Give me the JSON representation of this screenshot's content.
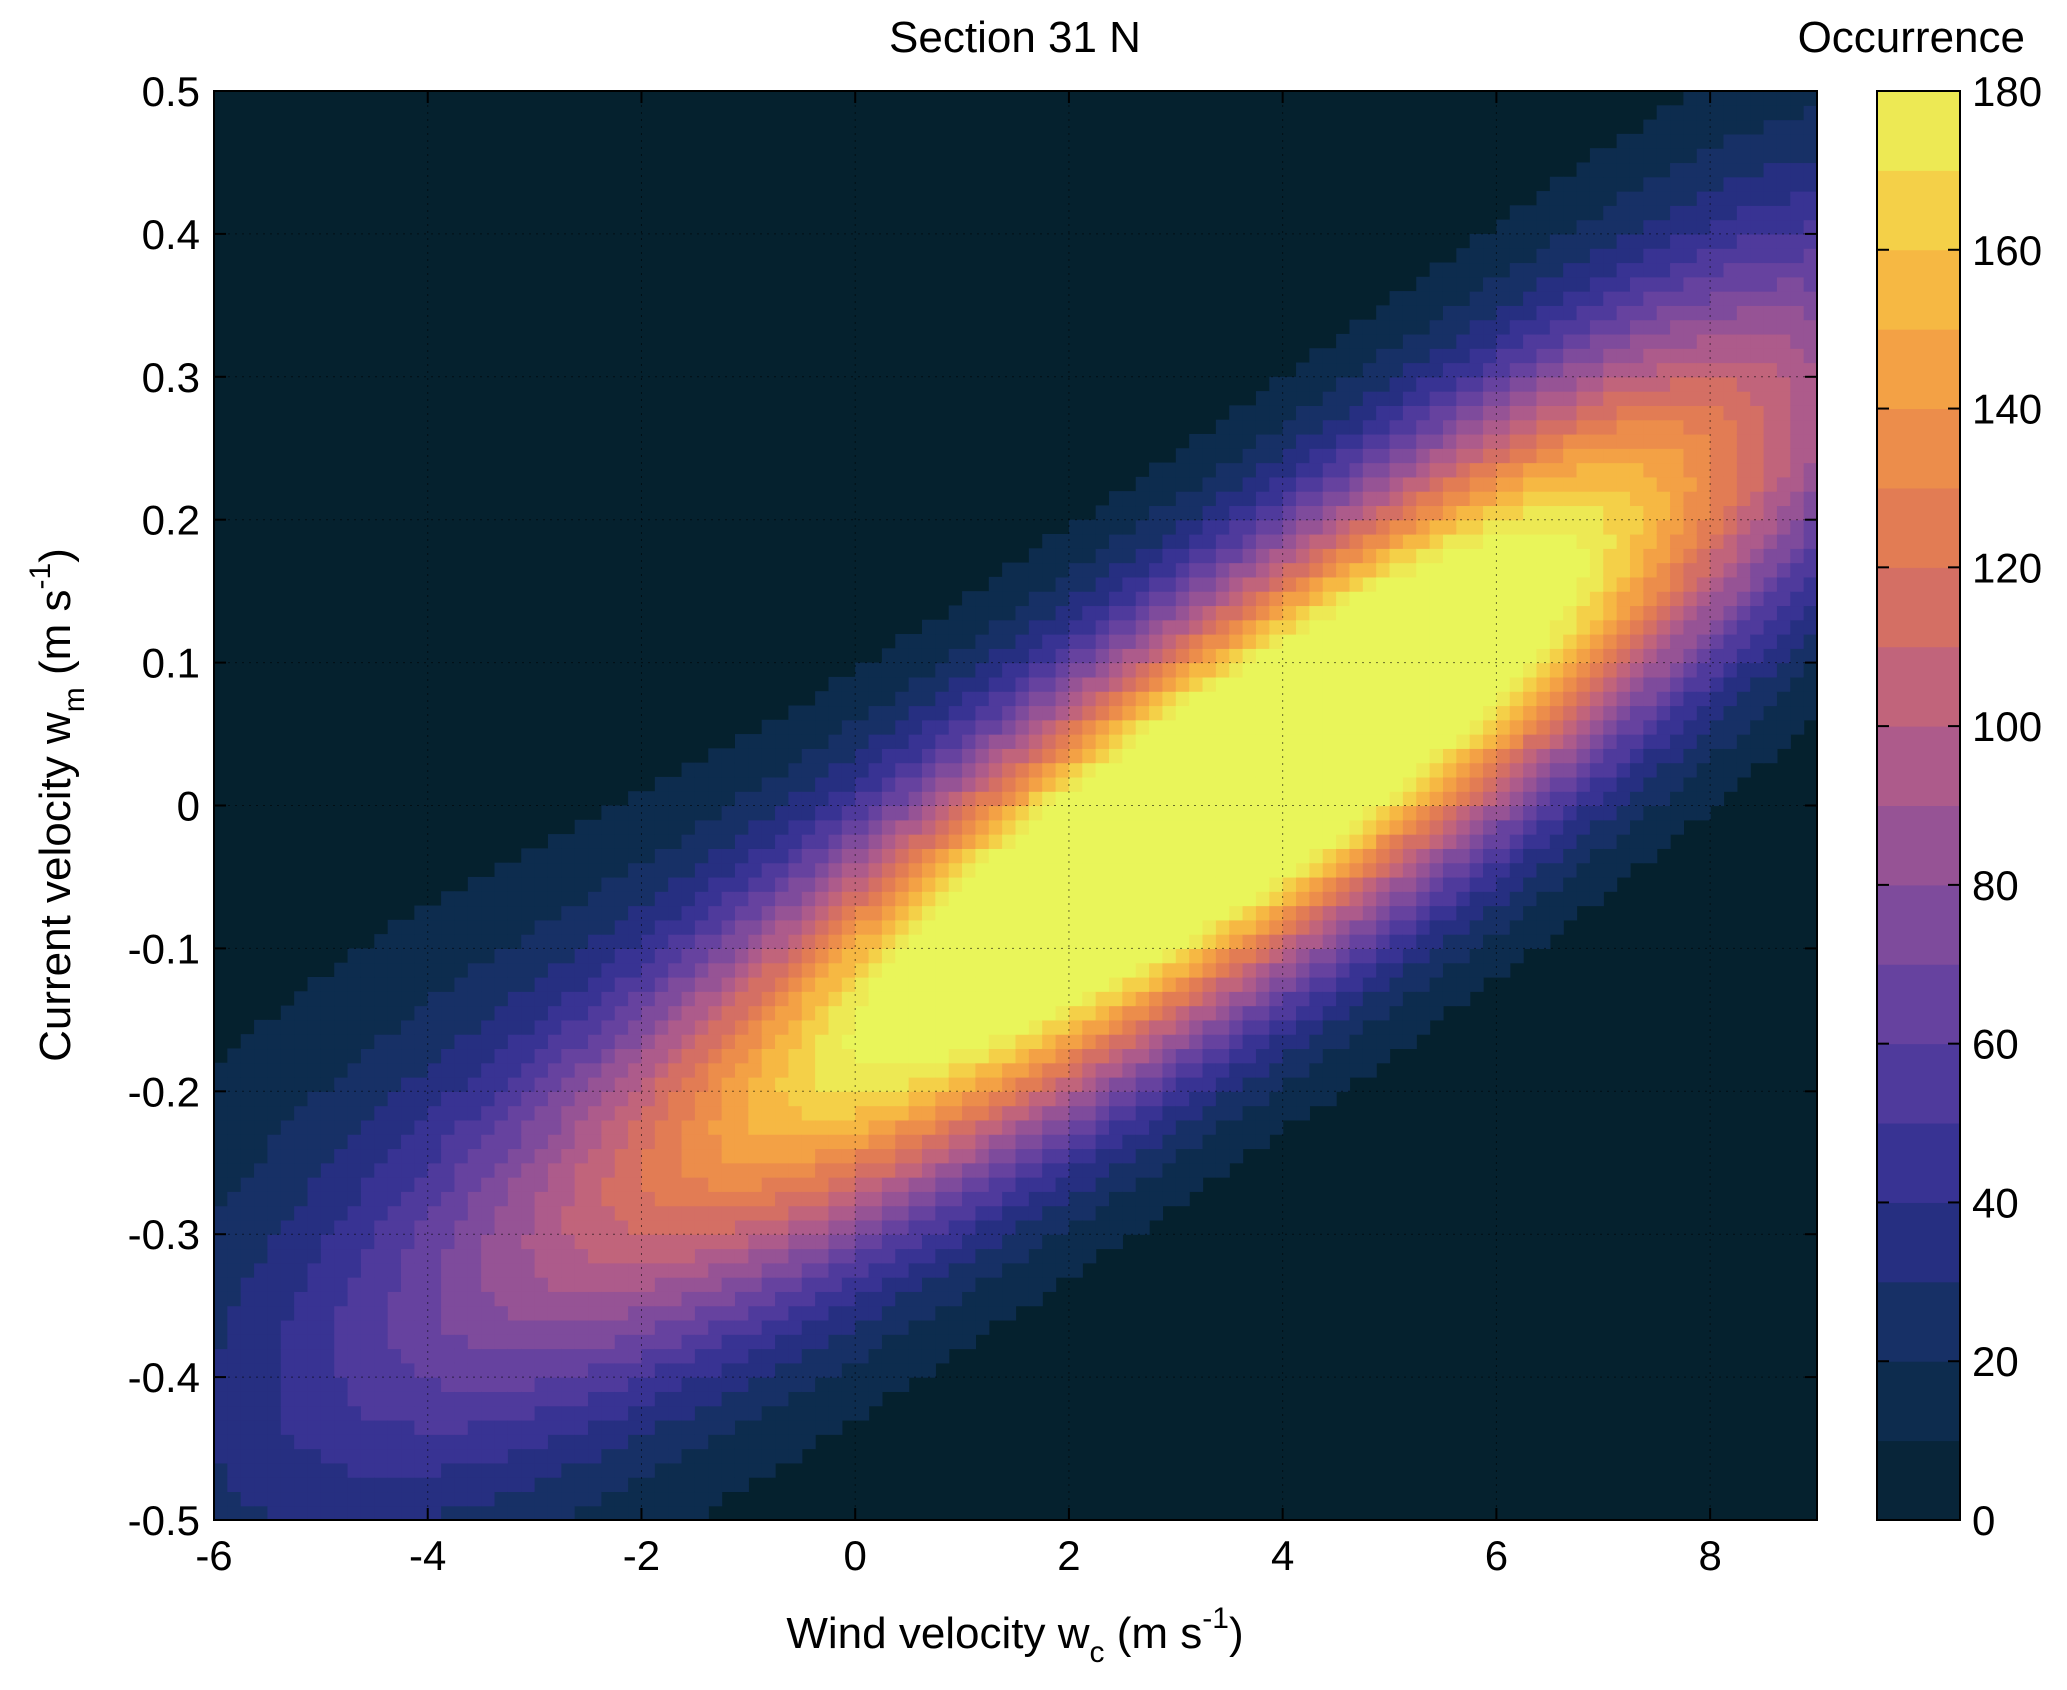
{
  "chart_data": {
    "type": "heatmap",
    "subtype": "filled-contour",
    "title": "Section 31 N",
    "xlabel": {
      "main": "Wind velocity w",
      "sub": "c",
      "units_pre": " (m s",
      "units_sup": "-1",
      "units_post": ")"
    },
    "ylabel": {
      "main": "Current velocity w",
      "sub": "m",
      "units_pre": " (m s",
      "units_sup": "-1",
      "units_post": ")"
    },
    "xlim": [
      -6,
      9
    ],
    "ylim": [
      -0.5,
      0.5
    ],
    "xticks": [
      -6,
      -4,
      -2,
      0,
      2,
      4,
      6,
      8
    ],
    "yticks": [
      -0.5,
      -0.4,
      -0.3,
      -0.2,
      -0.1,
      0,
      0.1,
      0.2,
      0.3,
      0.4,
      0.5
    ],
    "xtick_labels": [
      "-6",
      "-4",
      "-2",
      "0",
      "2",
      "4",
      "6",
      "8"
    ],
    "ytick_labels": [
      "-0.5",
      "-0.4",
      "-0.3",
      "-0.2",
      "-0.1",
      "0",
      "0.1",
      "0.2",
      "0.3",
      "0.4",
      "0.5"
    ],
    "grid": true,
    "colorbar": {
      "title": "Occurrence",
      "range": [
        0,
        180
      ],
      "ticks": [
        0,
        20,
        40,
        60,
        80,
        100,
        120,
        140,
        160,
        180
      ],
      "tick_labels": [
        "0",
        "20",
        "40",
        "60",
        "80",
        "100",
        "120",
        "140",
        "160",
        "180"
      ],
      "colormap": [
        "#05212e",
        "#0f3058",
        "#2d2f8f",
        "#5a3ea0",
        "#8a4f9a",
        "#b85f86",
        "#dd7458",
        "#f19546",
        "#f7c442",
        "#e9f55a"
      ]
    },
    "density_components": [
      {
        "x": 3.0,
        "y": -0.02,
        "peak": 180,
        "sigma_major": 3.8,
        "sigma_minor": 0.38,
        "slope": 0.048
      },
      {
        "x": 4.5,
        "y": 0.07,
        "peak": 70,
        "sigma_major": 3.5,
        "sigma_minor": 0.45,
        "slope": 0.048
      },
      {
        "x": -2.5,
        "y": -0.26,
        "peak": 28,
        "sigma_major": 3.0,
        "sigma_minor": 0.6,
        "slope": 0.03
      },
      {
        "x": 7.3,
        "y": 0.28,
        "peak": 20,
        "sigma_major": 2.3,
        "sigma_minor": 0.5,
        "slope": 0.06
      },
      {
        "x": -4.5,
        "y": -0.4,
        "peak": 8,
        "sigma_major": 2.2,
        "sigma_minor": 0.8,
        "slope": 0.03
      }
    ]
  }
}
